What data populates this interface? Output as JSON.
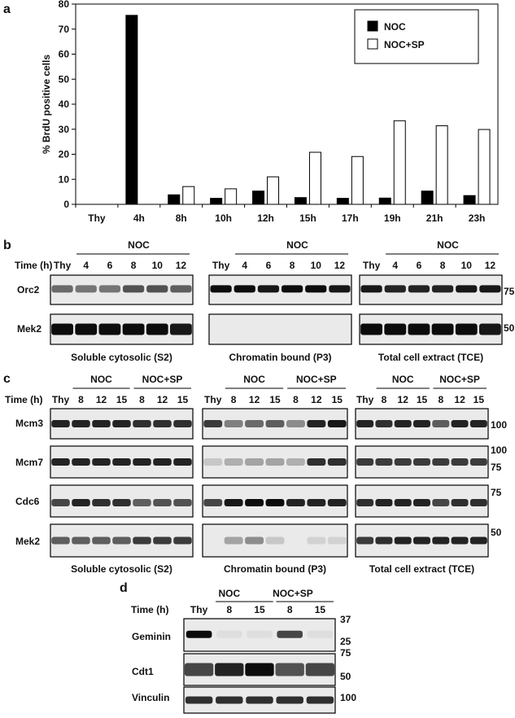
{
  "panel_a": {
    "label": "a",
    "chart_data": {
      "type": "bar",
      "categories": [
        "Thy",
        "4h",
        "8h",
        "10h",
        "12h",
        "15h",
        "17h",
        "19h",
        "21h",
        "23h"
      ],
      "series": [
        {
          "name": "NOC",
          "values": [
            0,
            75.5,
            3.8,
            2.4,
            5.3,
            2.7,
            2.4,
            2.5,
            5.3,
            3.5
          ],
          "color": "#000000"
        },
        {
          "name": "NOC+SP",
          "values": [
            0,
            0,
            7.1,
            6.2,
            11.0,
            20.8,
            19.1,
            33.4,
            31.4,
            29.9
          ],
          "color": "#ffffff"
        }
      ],
      "ylabel": "% BrdU positive cells",
      "xlabel": "",
      "ylim": [
        0,
        80
      ],
      "yticks": [
        "0",
        "10",
        "20",
        "30",
        "40",
        "50",
        "60",
        "70",
        "80"
      ],
      "legend": "top-right",
      "grid": false
    }
  },
  "panel_b": {
    "label": "b",
    "time_label": "Time (h)",
    "group_label": "NOC",
    "lanes": [
      "Thy",
      "4",
      "6",
      "8",
      "10",
      "12"
    ],
    "rows": [
      "Orc2",
      "Mek2"
    ],
    "captions": [
      "Soluble cytosolic (S2)",
      "Chromatin bound (P3)",
      "Total cell extract (TCE)"
    ],
    "markers": [
      "75",
      "50"
    ]
  },
  "panel_c": {
    "label": "c",
    "time_label": "Time (h)",
    "group_labels": [
      "NOC",
      "NOC+SP"
    ],
    "lanes": [
      "Thy",
      "8",
      "12",
      "15",
      "8",
      "12",
      "15"
    ],
    "rows": [
      "Mcm3",
      "Mcm7",
      "Cdc6",
      "Mek2"
    ],
    "captions": [
      "Soluble cytosolic (S2)",
      "Chromatin bound (P3)",
      "Total cell extract (TCE)"
    ],
    "markers": [
      "100",
      "100",
      "75",
      "75",
      "50"
    ]
  },
  "panel_d": {
    "label": "d",
    "time_label": "Time (h)",
    "group_labels": [
      "NOC",
      "NOC+SP"
    ],
    "lanes": [
      "Thy",
      "8",
      "15",
      "8",
      "15"
    ],
    "rows": [
      "Geminin",
      "Cdt1",
      "Vinculin"
    ],
    "markers": [
      "37",
      "25",
      "75",
      "50",
      "100"
    ]
  }
}
